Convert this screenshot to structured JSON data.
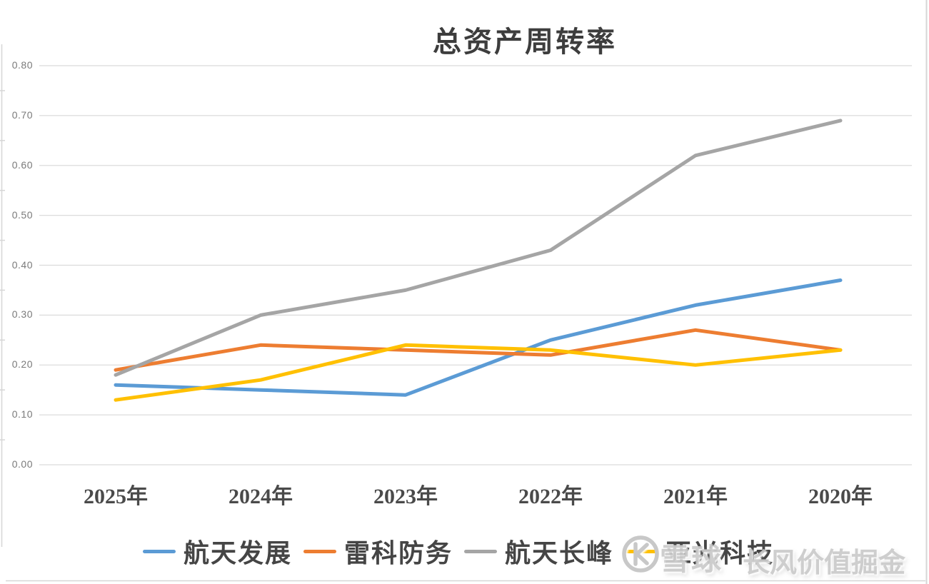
{
  "chart_data": {
    "type": "line",
    "title": "总资产周转率",
    "categories": [
      "2025年",
      "2024年",
      "2023年",
      "2022年",
      "2021年",
      "2020年"
    ],
    "series": [
      {
        "name": "航天发展",
        "color": "#5B9BD5",
        "values": [
          0.16,
          0.15,
          0.14,
          0.25,
          0.32,
          0.37
        ]
      },
      {
        "name": "雷科防务",
        "color": "#ED7D31",
        "values": [
          0.19,
          0.24,
          0.23,
          0.22,
          0.27,
          0.23
        ]
      },
      {
        "name": "航天长峰",
        "color": "#A5A5A5",
        "values": [
          0.18,
          0.3,
          0.35,
          0.43,
          0.62,
          0.69
        ]
      },
      {
        "name": "亚光科技",
        "color": "#FFC000",
        "values": [
          0.13,
          0.17,
          0.24,
          0.23,
          0.2,
          0.23
        ]
      }
    ],
    "ylim": [
      0.0,
      0.8
    ],
    "ytick_labels": [
      "0.80",
      "0.70",
      "0.60",
      "0.50",
      "0.40",
      "0.30",
      "0.20",
      "0.10",
      "0.00"
    ],
    "grid": true,
    "legend_position": "bottom",
    "gridline_color": "#DBDBDB",
    "edge_line_color": "#D6D6D6",
    "axis_tick_color": "#7A7A7A",
    "category_label_color": "#4A4A4A",
    "title_color": "#3D3D3D",
    "line_width": 5
  },
  "watermark": {
    "logo": "xueqiu-logo",
    "brand": "雪球",
    "author": "长风价值掘金",
    "color": "#C7C7C7"
  }
}
